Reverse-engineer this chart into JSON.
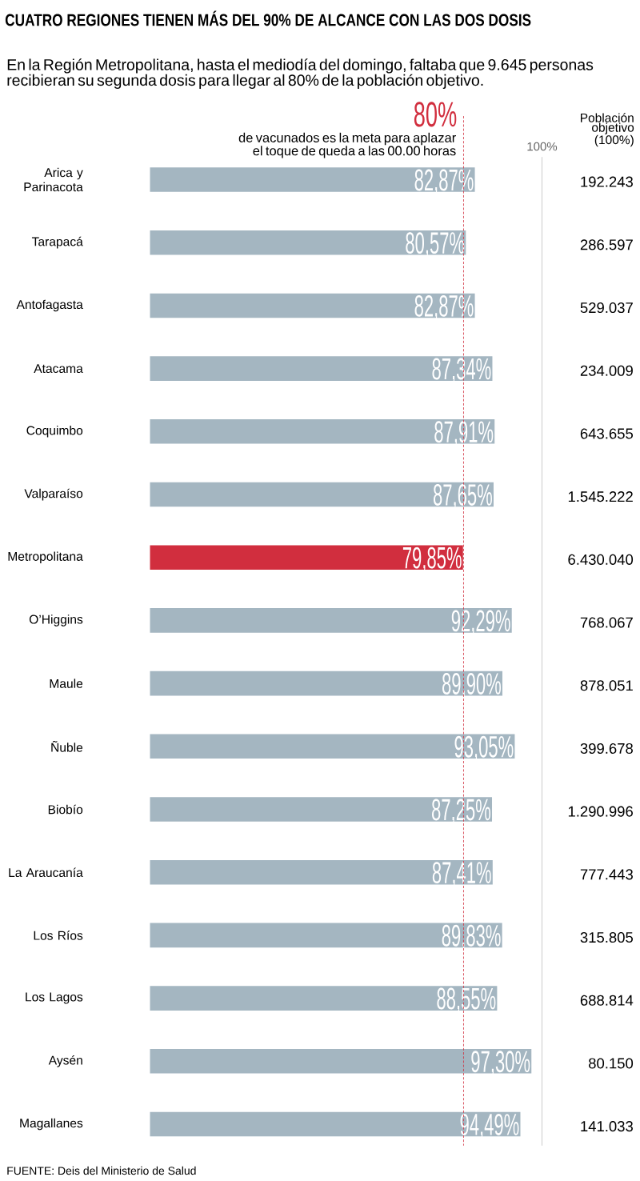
{
  "chart_data": {
    "type": "bar",
    "orientation": "horizontal",
    "title": "CUATRO REGIONES TIENEN MÁS DEL 90% DE ALCANCE CON LAS DOS DOSIS",
    "subtitle": "En la Región Metropolitana, hasta el mediodía del domingo, faltaba que 9.645 personas recibieran su segunda dosis para llegar al 80% de la población objetivo.",
    "categories": [
      "Arica y Parinacota",
      "Tarapacá",
      "Antofagasta",
      "Atacama",
      "Coquimbo",
      "Valparaíso",
      "Metropolitana",
      "O’Higgins",
      "Maule",
      "Ñuble",
      "Biobío",
      "La Araucanía",
      "Los Ríos",
      "Los Lagos",
      "Aysén",
      "Magallanes"
    ],
    "values": [
      82.87,
      80.57,
      82.87,
      87.34,
      87.91,
      87.65,
      79.85,
      92.29,
      89.9,
      93.05,
      87.25,
      87.41,
      89.83,
      88.55,
      97.3,
      94.49
    ],
    "value_labels": [
      "82,87%",
      "80,57%",
      "82,87%",
      "87,34%",
      "87,91%",
      "87,65%",
      "79,85%",
      "92,29%",
      "89,90%",
      "93,05%",
      "87,25%",
      "87,41%",
      "89,83%",
      "88,55%",
      "97,30%",
      "94,49%"
    ],
    "colors": [
      "#a4b6c1",
      "#a4b6c1",
      "#a4b6c1",
      "#a4b6c1",
      "#a4b6c1",
      "#a4b6c1",
      "#d12e3e",
      "#a4b6c1",
      "#a4b6c1",
      "#a4b6c1",
      "#a4b6c1",
      "#a4b6c1",
      "#a4b6c1",
      "#a4b6c1",
      "#a4b6c1",
      "#a4b6c1"
    ],
    "xlim": [
      0,
      100
    ],
    "tick_labels": "y",
    "ref_lines": [
      {
        "axis": "x",
        "value": 80,
        "label": "80%",
        "color": "#d12e3e",
        "line_style": "dashed"
      },
      {
        "axis": "x",
        "value": 100,
        "label": "100%",
        "color": "#bdbdbd",
        "line_style": "solid"
      }
    ],
    "annotations": [
      {
        "text": "de vacunados es la meta para aplazar el toque de queda a las 00.00 horas",
        "x": 80
      },
      "Población objetivo (100%)",
      "192.243",
      "286.597",
      "529.037",
      "234.009",
      "643.655",
      "1.545.222",
      "6.430.040",
      "768.067",
      "878.051",
      "399.678",
      "1.290.996",
      "777.443",
      "315.805",
      "688.814",
      "80.150",
      "141.033",
      "FUENTE: Deis del Ministerio de Salud"
    ]
  }
}
